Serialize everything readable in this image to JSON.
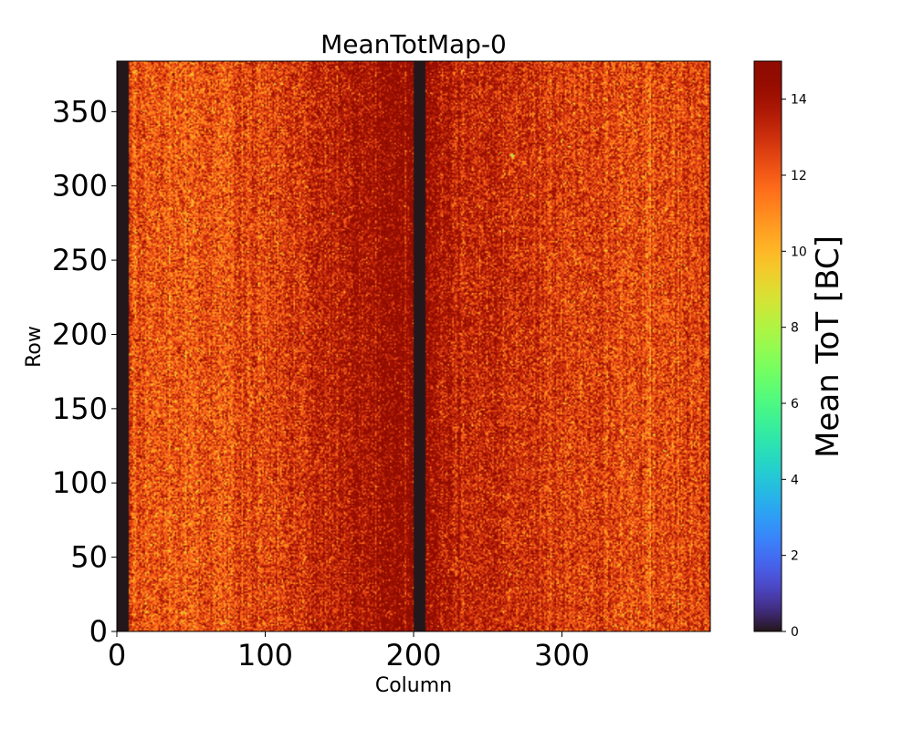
{
  "chart_data": {
    "type": "heatmap",
    "title": "MeanTotMap-0",
    "xlabel": "Column",
    "ylabel": "Row",
    "xlim": [
      0,
      400
    ],
    "ylim": [
      0,
      384
    ],
    "x_ticks": [
      0,
      100,
      200,
      300
    ],
    "y_ticks": [
      0,
      50,
      100,
      150,
      200,
      250,
      300,
      350
    ],
    "n_columns": 400,
    "n_rows": 384,
    "colormap": "turbo",
    "colorbar": {
      "label": "Mean ToT [BC]",
      "range": [
        0,
        15
      ],
      "ticks": [
        0,
        2,
        4,
        6,
        8,
        10,
        12,
        14
      ]
    },
    "dead_column_bands": [
      {
        "from": 0,
        "to": 8,
        "value": 0
      },
      {
        "from": 200,
        "to": 208,
        "value": 0
      }
    ],
    "column_profile": [
      {
        "col": 8,
        "mean": 12.2
      },
      {
        "col": 50,
        "mean": 12.0
      },
      {
        "col": 100,
        "mean": 12.6
      },
      {
        "col": 150,
        "mean": 13.6
      },
      {
        "col": 175,
        "mean": 14.3
      },
      {
        "col": 198,
        "mean": 14.8
      },
      {
        "col": 210,
        "mean": 14.3
      },
      {
        "col": 230,
        "mean": 13.4
      },
      {
        "col": 280,
        "mean": 13.0
      },
      {
        "col": 340,
        "mean": 12.4
      },
      {
        "col": 400,
        "mean": 12.6
      }
    ],
    "anomalous_pixel": {
      "col": 266,
      "row": 320,
      "value": 7
    }
  }
}
